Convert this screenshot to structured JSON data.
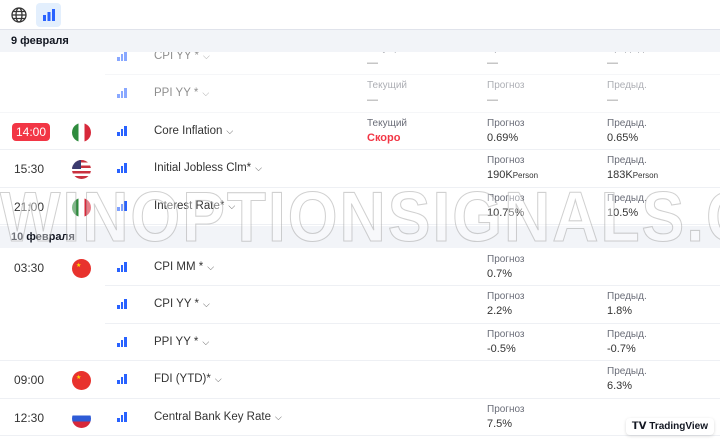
{
  "toolbar": {
    "icons": [
      "globe-icon",
      "bar-chart-icon"
    ]
  },
  "labels": {
    "current": "Текущий",
    "forecast": "Прогноз",
    "previous": "Предыд."
  },
  "days": [
    {
      "date": "9 февраля",
      "events": [
        {
          "time": "",
          "country": "mexico",
          "name": "CPI YY *",
          "current": "—",
          "forecast": "—",
          "previous": "—",
          "past": true
        },
        {
          "time": "",
          "country": "mexico",
          "name": "PPI YY *",
          "current": "—",
          "forecast": "—",
          "previous": "—",
          "past": true
        },
        {
          "time": "14:00",
          "live": true,
          "country": "mexico",
          "name": "Core Inflation",
          "current": "Скоро",
          "forecast": "0.69%",
          "previous": "0.65%"
        },
        {
          "time": "15:30",
          "country": "usa",
          "name": "Initial Jobless Clm*",
          "forecast": "190K",
          "forecast_unit": "Person",
          "previous": "183K",
          "previous_unit": "Person"
        },
        {
          "time": "21:00",
          "country": "mexico",
          "name": "Interest Rate*",
          "forecast": "10.75%",
          "previous": "10.5%"
        }
      ]
    },
    {
      "date": "10 февраля",
      "events": [
        {
          "time": "03:30",
          "country": "china",
          "name": "CPI MM *",
          "forecast": "0.7%"
        },
        {
          "time": "",
          "country": "china",
          "name": "CPI YY *",
          "forecast": "2.2%",
          "previous": "1.8%"
        },
        {
          "time": "",
          "country": "china",
          "name": "PPI YY *",
          "forecast": "-0.5%",
          "previous": "-0.7%"
        },
        {
          "time": "09:00",
          "country": "china",
          "name": "FDI (YTD)*",
          "previous": "6.3%"
        },
        {
          "time": "12:30",
          "country": "russia",
          "name": "Central Bank Key Rate",
          "forecast": "7.5%"
        }
      ]
    }
  ],
  "branding": "TradingView",
  "watermark": "WINOPTIONSIGNALS.COM",
  "colors": {
    "accent": "#2962ff",
    "live": "#f23645"
  }
}
